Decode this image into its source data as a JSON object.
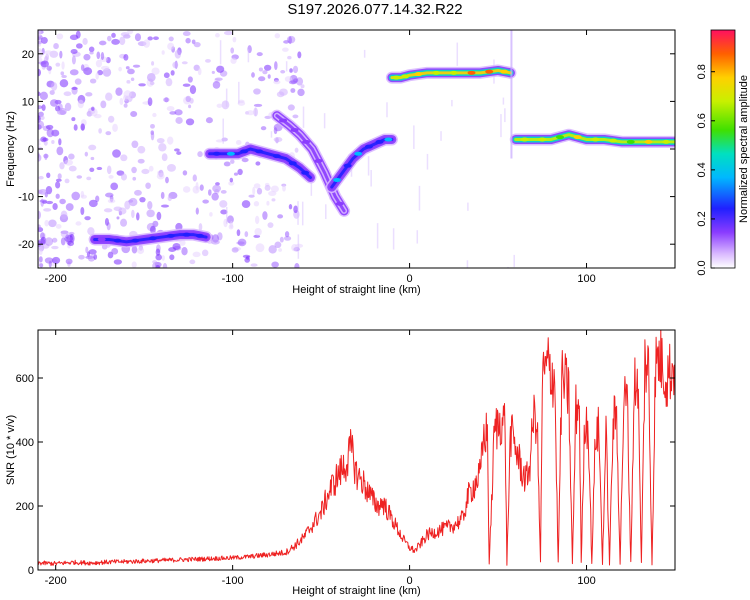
{
  "title": "S197.2026.077.14.32.R22",
  "chart_data": [
    {
      "type": "heatmap",
      "xlabel": "Height of straight line (km)",
      "ylabel": "Frequency (Hz)",
      "xlim": [
        -210,
        150
      ],
      "ylim": [
        -25,
        25
      ],
      "xticks": [
        -200,
        -100,
        0,
        100
      ],
      "yticks": [
        20,
        10,
        0,
        -10,
        -20
      ],
      "colorbar": {
        "label": "Normalized spectral amplitude",
        "range": [
          0,
          0.97
        ],
        "ticks": [
          0.0,
          0.2,
          0.4,
          0.6,
          0.8
        ]
      },
      "tracks": [
        {
          "x": [
            -178,
            -170,
            -160,
            -150,
            -140,
            -130,
            -122,
            -115
          ],
          "y": [
            -19,
            -19,
            -19.5,
            -19,
            -18.5,
            -18,
            -18,
            -18.5
          ],
          "amp": 0.25
        },
        {
          "x": [
            -113,
            -105,
            -97,
            -90,
            -80,
            -70,
            -62,
            -56
          ],
          "y": [
            -1,
            -1,
            -1,
            0,
            -1,
            -2,
            -4,
            -6
          ],
          "amp": 0.35
        },
        {
          "x": [
            -75,
            -68,
            -62,
            -55,
            -48,
            -42,
            -37
          ],
          "y": [
            7,
            5,
            3,
            0,
            -5,
            -10,
            -13
          ],
          "amp": 0.2
        },
        {
          "x": [
            -44,
            -38,
            -32,
            -26,
            -20,
            -14,
            -10
          ],
          "y": [
            -8,
            -5,
            -2,
            0,
            1,
            2,
            2
          ],
          "amp": 0.35
        },
        {
          "x": [
            -10,
            -5,
            0,
            10,
            20,
            30,
            40,
            50,
            57
          ],
          "y": [
            15,
            15,
            15.5,
            16,
            16,
            16,
            16,
            16.5,
            16
          ],
          "amp": 0.85
        },
        {
          "x": [
            60,
            70,
            80,
            90,
            100,
            110,
            120,
            130,
            140,
            150
          ],
          "y": [
            2,
            2,
            2,
            3,
            2,
            2,
            1.5,
            1.5,
            1.5,
            1.5
          ],
          "amp": 0.75
        }
      ]
    },
    {
      "type": "line",
      "xlabel": "Height of straight line (km)",
      "ylabel": "SNR (10 * v/v)",
      "xlim": [
        -210,
        150
      ],
      "ylim": [
        0,
        750
      ],
      "xticks": [
        -200,
        -100,
        0,
        100
      ],
      "yticks": [
        0,
        200,
        400,
        600
      ],
      "color": "#ee2222",
      "series": [
        {
          "x": [
            -210,
            -200,
            -190,
            -180,
            -170,
            -160,
            -150,
            -140,
            -130,
            -120,
            -110,
            -100,
            -90,
            -80,
            -70,
            -65,
            -60,
            -55,
            -50,
            -45,
            -40,
            -36,
            -33,
            -30,
            -27,
            -24,
            -21,
            -18,
            -15,
            -12,
            -9,
            -6,
            -3,
            0,
            3,
            6,
            10,
            15,
            20,
            25,
            30,
            33,
            35,
            38,
            40,
            42,
            44,
            45,
            48,
            50,
            52,
            54,
            55,
            57,
            60,
            62,
            64,
            66,
            68,
            70,
            72,
            74,
            75,
            78,
            80,
            82,
            84,
            86,
            88,
            90,
            92,
            94,
            96,
            97,
            99,
            101,
            103,
            105,
            107,
            109,
            111,
            113,
            115,
            117,
            119,
            121,
            123,
            125,
            127,
            129,
            131,
            133,
            135,
            137,
            139,
            141,
            143,
            145,
            147,
            150
          ],
          "y": [
            22,
            20,
            24,
            22,
            25,
            26,
            28,
            30,
            32,
            34,
            36,
            38,
            42,
            48,
            55,
            75,
            100,
            140,
            180,
            250,
            300,
            330,
            380,
            300,
            280,
            250,
            220,
            200,
            210,
            180,
            150,
            120,
            90,
            70,
            60,
            80,
            110,
            120,
            130,
            140,
            160,
            230,
            250,
            280,
            300,
            420,
            430,
            20,
            440,
            450,
            470,
            460,
            20,
            430,
            380,
            340,
            300,
            280,
            330,
            480,
            470,
            20,
            590,
            640,
            620,
            600,
            20,
            600,
            580,
            550,
            20,
            500,
            520,
            20,
            470,
            450,
            20,
            420,
            440,
            20,
            430,
            20,
            460,
            480,
            20,
            520,
            540,
            20,
            580,
            600,
            20,
            650,
            630,
            20,
            640,
            660,
            650,
            600,
            620,
            640
          ]
        }
      ]
    }
  ]
}
